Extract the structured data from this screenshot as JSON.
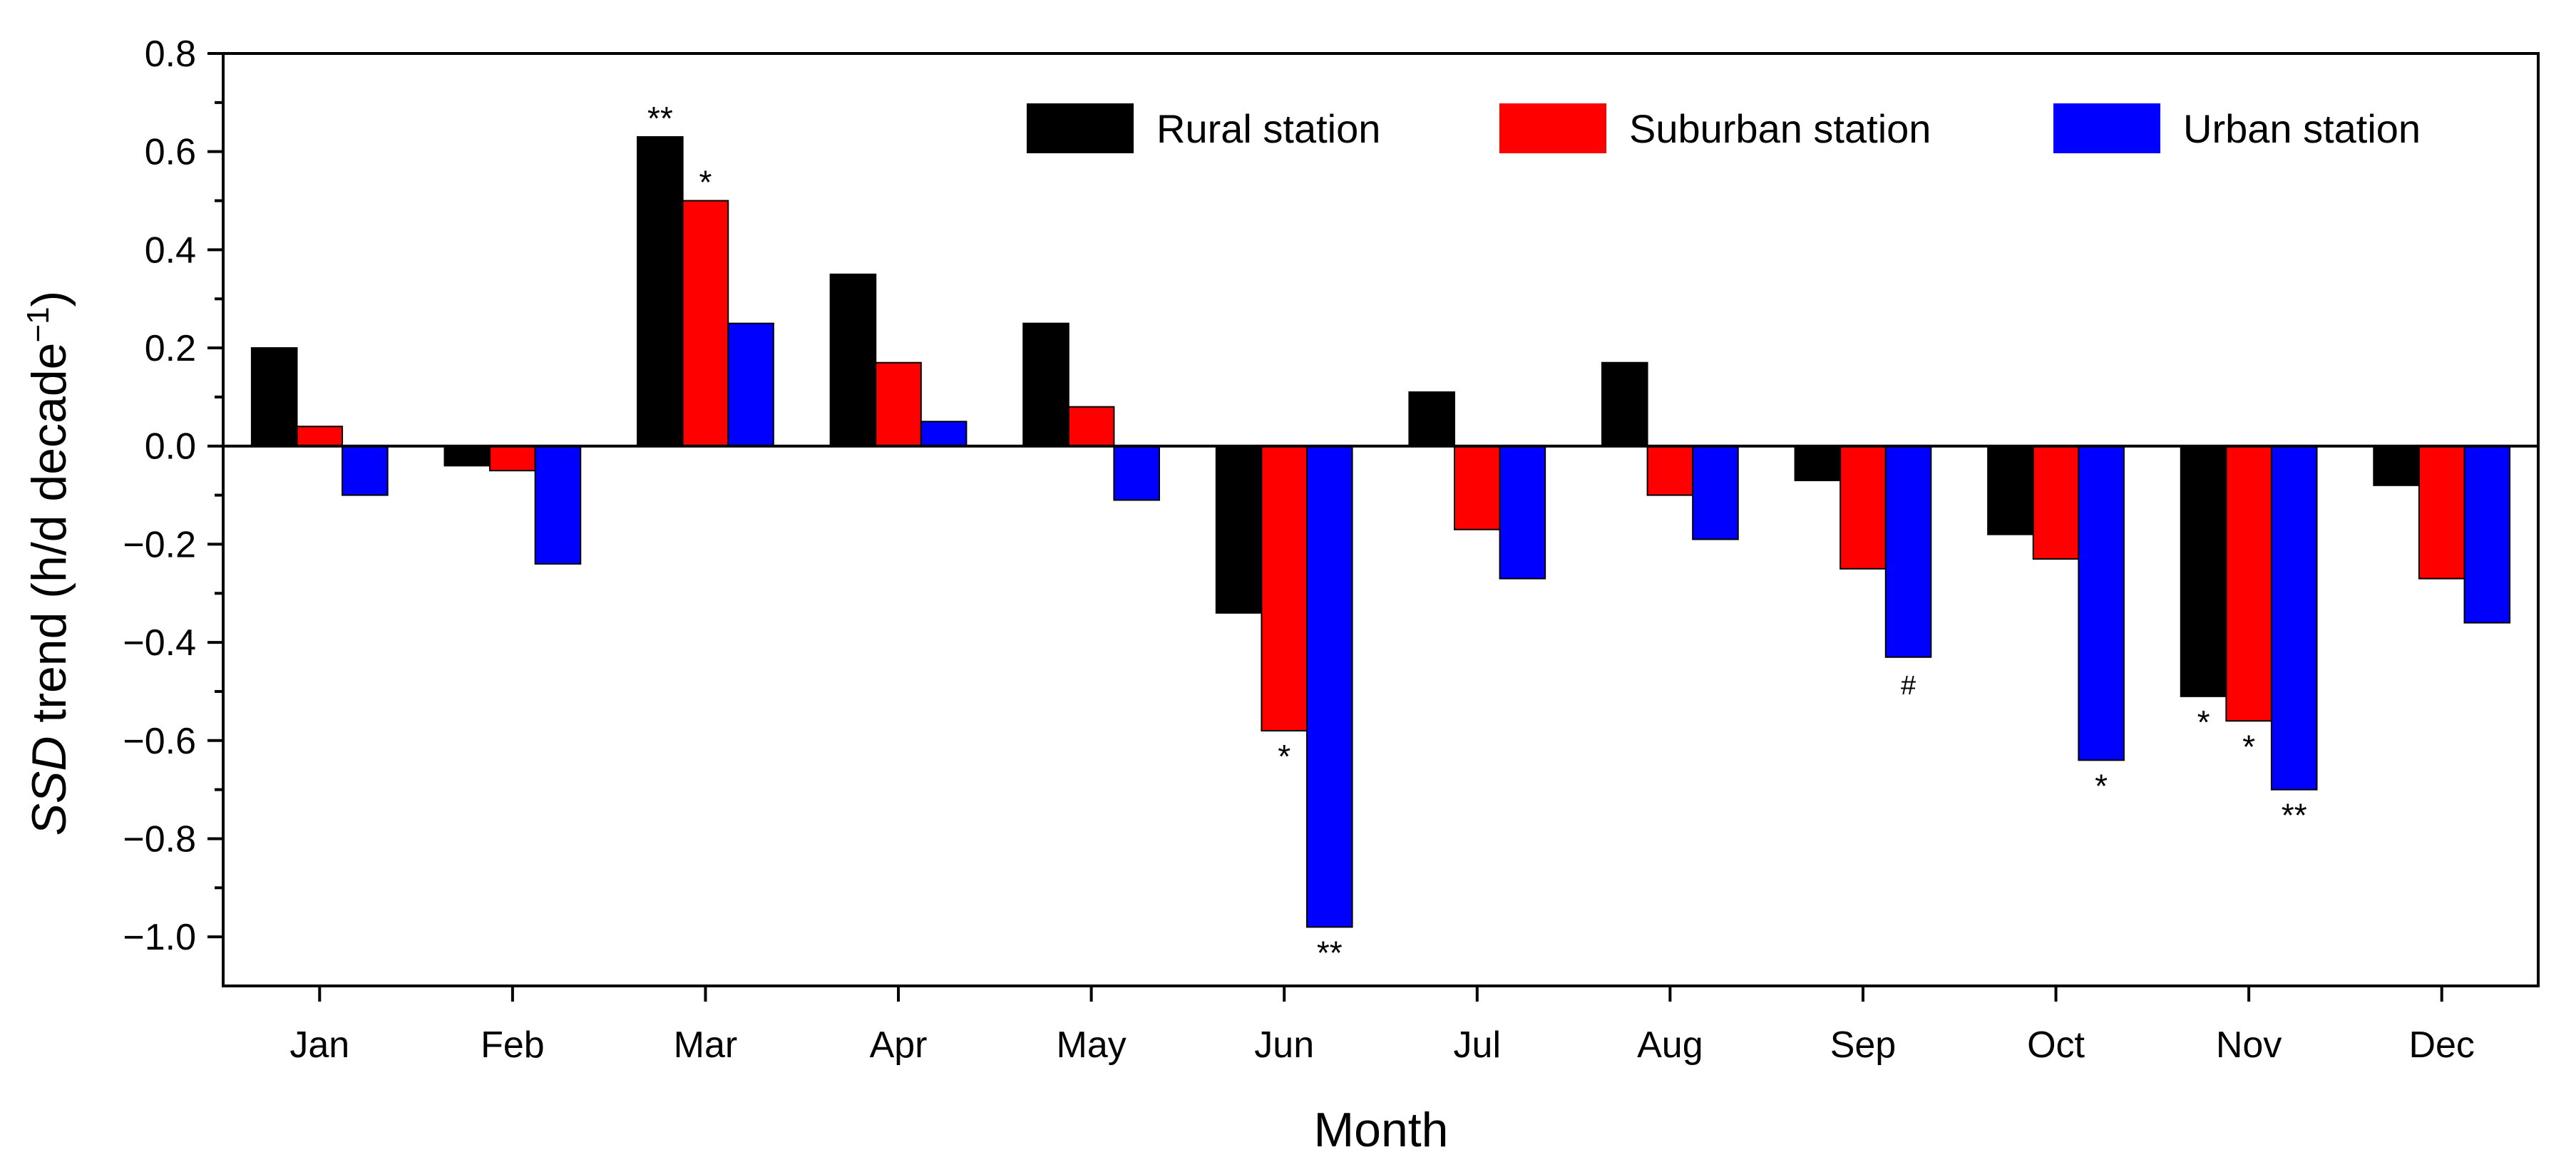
{
  "chart_data": {
    "type": "bar",
    "title": "",
    "xlabel": "Month",
    "ylabel": {
      "italic": "SSD",
      "main": " trend (h/d decade",
      "superscript": "−1",
      "close": ")"
    },
    "ylim": [
      -1.1,
      0.8
    ],
    "yticks": [
      0.8,
      0.6,
      0.4,
      0.2,
      0.0,
      -0.2,
      -0.4,
      -0.6,
      -0.8,
      -1.0
    ],
    "ytick_labels": [
      "0.8",
      "0.6",
      "0.4",
      "0.2",
      "0.0",
      "−0.2",
      "−0.4",
      "−0.6",
      "−0.8",
      "−1.0"
    ],
    "categories": [
      "Jan",
      "Feb",
      "Mar",
      "Apr",
      "May",
      "Jun",
      "Jul",
      "Aug",
      "Sep",
      "Oct",
      "Nov",
      "Dec"
    ],
    "legend_position": "top-right",
    "grid": false,
    "series": [
      {
        "name": "Rural station",
        "color": "#000000",
        "values": [
          0.2,
          -0.04,
          0.63,
          0.35,
          0.25,
          -0.34,
          0.11,
          0.17,
          -0.07,
          -0.18,
          -0.51,
          -0.08
        ],
        "significance": [
          "",
          "",
          "**",
          "",
          "",
          "",
          "",
          "",
          "",
          "",
          "*",
          ""
        ]
      },
      {
        "name": "Suburban station",
        "color": "#ff0000",
        "values": [
          0.04,
          -0.05,
          0.5,
          0.17,
          0.08,
          -0.58,
          -0.17,
          -0.1,
          -0.25,
          -0.23,
          -0.56,
          -0.27
        ],
        "significance": [
          "",
          "",
          "*",
          "",
          "",
          "*",
          "",
          "",
          "",
          "",
          "*",
          ""
        ]
      },
      {
        "name": "Urban station",
        "color": "#0000ff",
        "values": [
          -0.1,
          -0.24,
          0.25,
          0.05,
          -0.11,
          -0.98,
          -0.27,
          -0.19,
          -0.43,
          -0.64,
          -0.7,
          -0.36
        ],
        "significance": [
          "",
          "",
          "",
          "",
          "",
          "**",
          "",
          "",
          "#",
          "*",
          "**",
          ""
        ]
      }
    ]
  }
}
